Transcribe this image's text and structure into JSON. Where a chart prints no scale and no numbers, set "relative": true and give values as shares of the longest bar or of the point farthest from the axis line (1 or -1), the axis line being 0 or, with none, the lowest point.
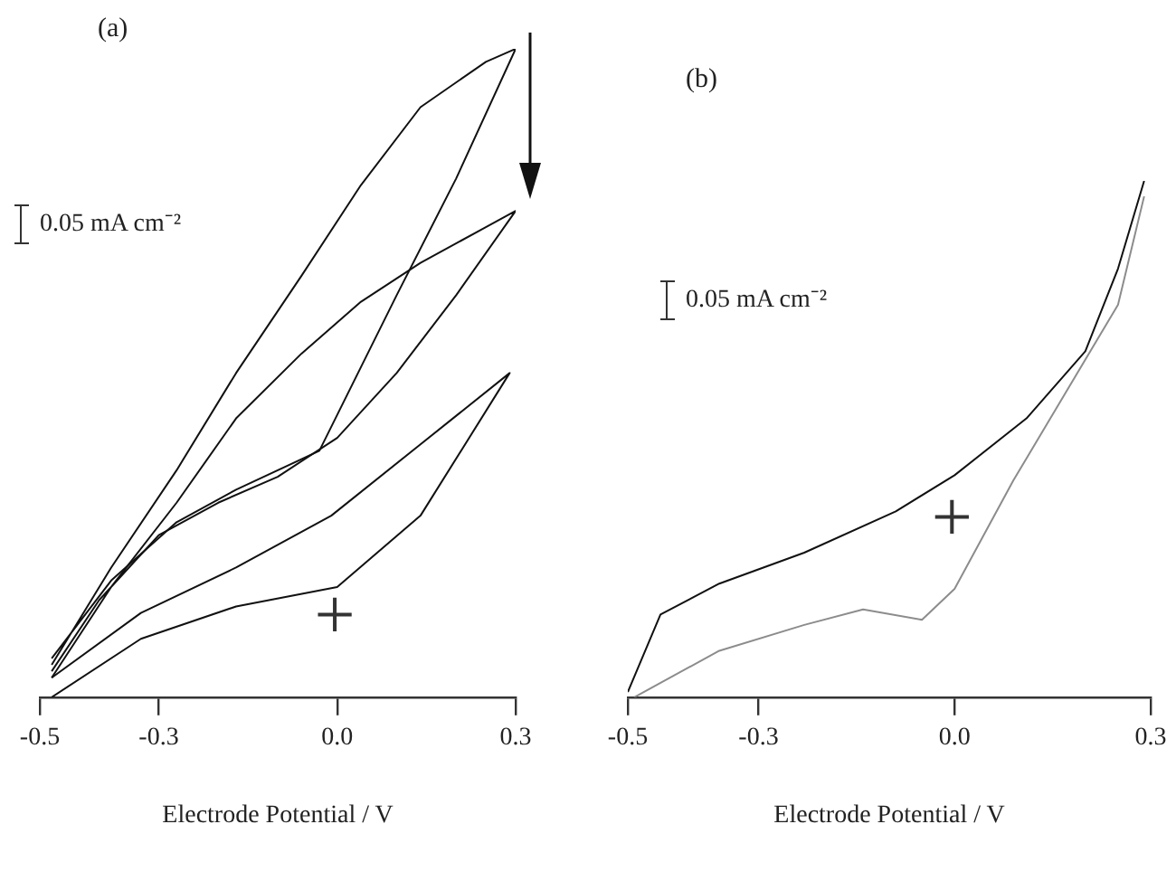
{
  "chart_data": [
    {
      "type": "line",
      "title": "(a)",
      "xlabel": "Electrode Potential / V",
      "relative": true,
      "xlim": [
        -0.5,
        0.3
      ],
      "xticks": [
        -0.5,
        -0.3,
        {
          "value": 0,
          "label": "0.0"
        },
        0.3
      ],
      "annotations": [
        "0.05 mA cm⁻²",
        "+"
      ],
      "series": [
        {
          "color": "#111111",
          "x": [
            -0.48,
            -0.38,
            -0.27,
            -0.17,
            -0.06,
            0.04,
            0.14,
            0.25,
            0.3,
            0.2,
            0.1,
            -0.03,
            -0.17,
            -0.27,
            -0.38,
            -0.48
          ],
          "values": [
            0.05,
            0.2,
            0.35,
            0.5,
            0.65,
            0.79,
            0.91,
            0.98,
            1.0,
            0.8,
            0.62,
            0.38,
            0.32,
            0.27,
            0.18,
            0.06
          ]
        },
        {
          "color": "#111111",
          "x": [
            -0.48,
            -0.38,
            -0.27,
            -0.17,
            -0.06,
            0.04,
            0.14,
            0.3,
            0.2,
            0.1,
            0.0,
            -0.1,
            -0.2,
            -0.3,
            -0.4,
            -0.48
          ],
          "values": [
            0.03,
            0.17,
            0.3,
            0.43,
            0.53,
            0.61,
            0.67,
            0.75,
            0.62,
            0.5,
            0.4,
            0.34,
            0.3,
            0.25,
            0.15,
            0.04
          ]
        },
        {
          "color": "#111111",
          "x": [
            -0.48,
            -0.33,
            -0.17,
            0.0,
            0.14,
            0.29,
            0.14,
            -0.01,
            -0.17,
            -0.33,
            -0.48
          ],
          "values": [
            0,
            0.09,
            0.14,
            0.17,
            0.28,
            0.5,
            0.39,
            0.28,
            0.2,
            0.13,
            0.03
          ]
        }
      ]
    },
    {
      "type": "line",
      "title": "(b)",
      "xlabel": "Electrode Potential / V",
      "relative": true,
      "xlim": [
        -0.5,
        0.3
      ],
      "xticks": [
        -0.5,
        -0.3,
        {
          "value": 0,
          "label": "0.0"
        },
        0.3
      ],
      "annotations": [
        "0.05 mA cm⁻²",
        "+"
      ],
      "series": [
        {
          "color": "#111111",
          "x": [
            -0.5,
            -0.45,
            -0.36,
            -0.23,
            -0.09,
            0.0,
            0.11,
            0.2,
            0.25,
            0.29
          ],
          "values": [
            0.01,
            0.16,
            0.22,
            0.28,
            0.36,
            0.43,
            0.54,
            0.67,
            0.83,
            1.0
          ]
        },
        {
          "color": "#8c8c8c",
          "x": [
            0.29,
            0.25,
            0.17,
            0.09,
            0.0,
            -0.05,
            -0.14,
            -0.23,
            -0.36,
            -0.49
          ],
          "values": [
            0.97,
            0.76,
            0.59,
            0.42,
            0.21,
            0.15,
            0.17,
            0.14,
            0.09,
            0.0
          ]
        }
      ]
    }
  ]
}
